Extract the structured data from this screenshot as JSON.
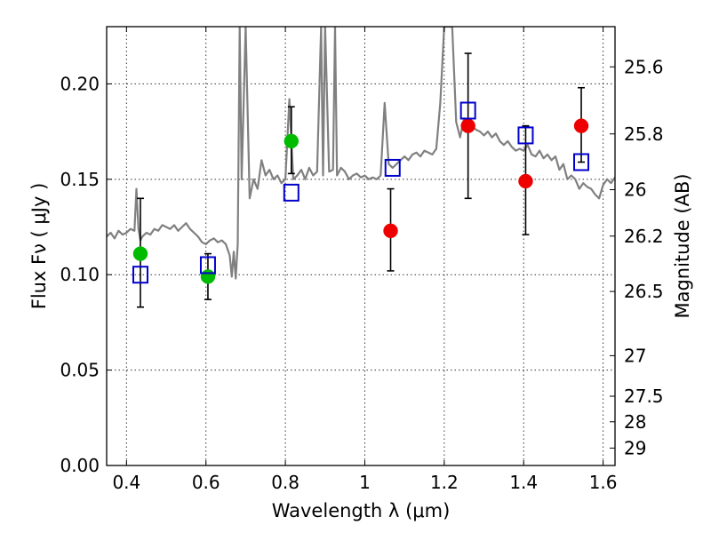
{
  "chart_data": {
    "type": "scatter",
    "title": "",
    "xlabel": "Wavelength  λ (μm)",
    "ylabel": "Flux  Fν  ( μJy )",
    "y2label": "Magnitude (AB)",
    "xlim": [
      0.35,
      1.63
    ],
    "ylim": [
      0.0,
      0.23
    ],
    "grid": true,
    "legend": "none",
    "x_ticks": [
      {
        "value": 0.4,
        "label": "0.4"
      },
      {
        "value": 0.6,
        "label": "0.6"
      },
      {
        "value": 0.8,
        "label": "0.8"
      },
      {
        "value": 1.0,
        "label": "1"
      },
      {
        "value": 1.2,
        "label": "1.2"
      },
      {
        "value": 1.4,
        "label": "1.4"
      },
      {
        "value": 1.6,
        "label": "1.6"
      }
    ],
    "y_ticks": [
      {
        "value": 0.0,
        "label": "0.00"
      },
      {
        "value": 0.05,
        "label": "0.05"
      },
      {
        "value": 0.1,
        "label": "0.10"
      },
      {
        "value": 0.15,
        "label": "0.15"
      },
      {
        "value": 0.2,
        "label": "0.20"
      }
    ],
    "y2_ticks": [
      {
        "mag": 25.6,
        "label": "25.6"
      },
      {
        "mag": 25.8,
        "label": "25.8"
      },
      {
        "mag": 26.0,
        "label": "26"
      },
      {
        "mag": 26.2,
        "label": "26.2"
      },
      {
        "mag": 26.5,
        "label": "26.5"
      },
      {
        "mag": 27.0,
        "label": "27"
      },
      {
        "mag": 27.5,
        "label": "27.5"
      },
      {
        "mag": 28.0,
        "label": "28"
      },
      {
        "mag": 29.0,
        "label": "29"
      }
    ],
    "series": [
      {
        "type": "line",
        "color": "#808080",
        "x": [
          0.35,
          0.36,
          0.37,
          0.38,
          0.39,
          0.4,
          0.41,
          0.42,
          0.425,
          0.43,
          0.435,
          0.44,
          0.45,
          0.46,
          0.47,
          0.48,
          0.49,
          0.5,
          0.51,
          0.52,
          0.53,
          0.54,
          0.55,
          0.56,
          0.57,
          0.58,
          0.59,
          0.6,
          0.61,
          0.62,
          0.63,
          0.64,
          0.65,
          0.66,
          0.665,
          0.67,
          0.675,
          0.68,
          0.685,
          0.69,
          0.7,
          0.71,
          0.72,
          0.73,
          0.74,
          0.75,
          0.76,
          0.77,
          0.78,
          0.79,
          0.8,
          0.81,
          0.82,
          0.83,
          0.84,
          0.85,
          0.86,
          0.87,
          0.88,
          0.89,
          0.895,
          0.9,
          0.91,
          0.92,
          0.925,
          0.93,
          0.94,
          0.95,
          0.96,
          0.97,
          0.98,
          0.99,
          1.0,
          1.01,
          1.02,
          1.03,
          1.04,
          1.05,
          1.06,
          1.07,
          1.08,
          1.09,
          1.1,
          1.11,
          1.12,
          1.13,
          1.14,
          1.15,
          1.16,
          1.17,
          1.18,
          1.19,
          1.2,
          1.21,
          1.22,
          1.23,
          1.24,
          1.25,
          1.26,
          1.27,
          1.28,
          1.29,
          1.3,
          1.31,
          1.32,
          1.33,
          1.34,
          1.35,
          1.36,
          1.37,
          1.38,
          1.39,
          1.4,
          1.41,
          1.42,
          1.43,
          1.44,
          1.45,
          1.46,
          1.47,
          1.48,
          1.49,
          1.5,
          1.51,
          1.52,
          1.53,
          1.54,
          1.55,
          1.56,
          1.57,
          1.58,
          1.59,
          1.6,
          1.61,
          1.62,
          1.63
        ],
        "y": [
          0.12,
          0.122,
          0.119,
          0.123,
          0.121,
          0.122,
          0.124,
          0.123,
          0.145,
          0.124,
          0.118,
          0.12,
          0.122,
          0.121,
          0.124,
          0.123,
          0.126,
          0.125,
          0.124,
          0.126,
          0.123,
          0.125,
          0.127,
          0.124,
          0.122,
          0.12,
          0.117,
          0.116,
          0.118,
          0.119,
          0.117,
          0.118,
          0.116,
          0.11,
          0.099,
          0.112,
          0.098,
          0.116,
          0.23,
          0.15,
          0.23,
          0.14,
          0.15,
          0.145,
          0.16,
          0.152,
          0.155,
          0.15,
          0.152,
          0.148,
          0.15,
          0.192,
          0.15,
          0.152,
          0.155,
          0.15,
          0.156,
          0.152,
          0.154,
          0.23,
          0.152,
          0.23,
          0.154,
          0.155,
          0.23,
          0.152,
          0.156,
          0.154,
          0.15,
          0.152,
          0.153,
          0.151,
          0.152,
          0.15,
          0.151,
          0.15,
          0.152,
          0.19,
          0.158,
          0.156,
          0.158,
          0.16,
          0.162,
          0.16,
          0.163,
          0.164,
          0.162,
          0.165,
          0.164,
          0.163,
          0.166,
          0.19,
          0.23,
          0.23,
          0.23,
          0.18,
          0.172,
          0.182,
          0.175,
          0.178,
          0.176,
          0.175,
          0.173,
          0.175,
          0.172,
          0.174,
          0.17,
          0.168,
          0.17,
          0.167,
          0.165,
          0.166,
          0.165,
          0.168,
          0.163,
          0.162,
          0.165,
          0.161,
          0.163,
          0.16,
          0.162,
          0.155,
          0.158,
          0.15,
          0.152,
          0.15,
          0.145,
          0.148,
          0.146,
          0.145,
          0.142,
          0.14,
          0.147,
          0.15,
          0.148,
          0.151
        ]
      },
      {
        "type": "scatter",
        "marker": "circle",
        "color": "#00bb00",
        "x": [
          0.435,
          0.605,
          0.815
        ],
        "y": [
          0.111,
          0.099,
          0.17
        ]
      },
      {
        "type": "scatter",
        "marker": "circle",
        "color": "#ee0000",
        "x": [
          1.065,
          1.26,
          1.405,
          1.545
        ],
        "y": [
          0.123,
          0.178,
          0.149,
          0.178
        ]
      },
      {
        "type": "scatter",
        "marker": "open-square",
        "color": "#0000cc",
        "x": [
          0.435,
          0.605,
          0.815,
          1.07,
          1.26,
          1.405,
          1.545
        ],
        "y": [
          0.1,
          0.105,
          0.143,
          0.156,
          0.186,
          0.173,
          0.159
        ]
      }
    ],
    "error_bars": [
      {
        "x": 0.435,
        "low": 0.083,
        "high": 0.14
      },
      {
        "x": 0.605,
        "low": 0.087,
        "high": 0.111
      },
      {
        "x": 0.815,
        "low": 0.153,
        "high": 0.188
      },
      {
        "x": 1.065,
        "low": 0.102,
        "high": 0.145
      },
      {
        "x": 1.26,
        "low": 0.14,
        "high": 0.216
      },
      {
        "x": 1.405,
        "low": 0.121,
        "high": 0.178
      },
      {
        "x": 1.545,
        "low": 0.159,
        "high": 0.198
      }
    ]
  }
}
